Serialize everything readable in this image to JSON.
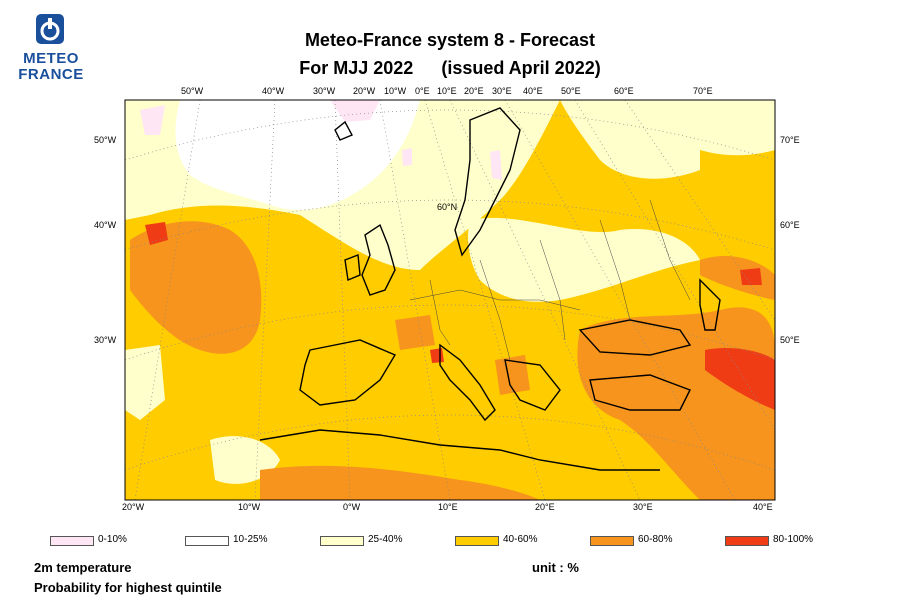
{
  "logo": {
    "line1": "METEO",
    "line2": "FRANCE",
    "icon": "meteo-france-logo-icon"
  },
  "title": {
    "line1": "Meteo-France system 8  -  Forecast",
    "line2_a": "For MJJ 2022",
    "line2_b": "(issued April 2022)"
  },
  "map": {
    "top_labels": [
      "50°W",
      "40°W",
      "30°W",
      "20°W",
      "10°W",
      "0°E",
      "10°E",
      "20°E",
      "30°E",
      "40°E",
      "50°E",
      "60°E",
      "70°E"
    ],
    "bottom_labels": [
      "20°W",
      "10°W",
      "0°W",
      "10°E",
      "20°E",
      "30°E",
      "40°E"
    ],
    "left_labels": [
      "50°W",
      "40°W",
      "30°W"
    ],
    "right_labels": [
      "70°E",
      "60°E",
      "50°E"
    ],
    "inner_label": "60°N",
    "colors": {
      "p0_10": "#ffe6f5",
      "p10_25": "#ffffff",
      "p25_40": "#ffffcc",
      "p40_60": "#ffcc00",
      "p60_80": "#f7941d",
      "p80_100": "#f03c14"
    }
  },
  "legend": [
    {
      "label": "0-10%",
      "color": "#ffe6f5"
    },
    {
      "label": "10-25%",
      "color": "#ffffff"
    },
    {
      "label": "25-40%",
      "color": "#ffffcc"
    },
    {
      "label": "40-60%",
      "color": "#ffcc00"
    },
    {
      "label": "60-80%",
      "color": "#f7941d"
    },
    {
      "label": "80-100%",
      "color": "#f03c14"
    }
  ],
  "footer": {
    "variable": "2m temperature",
    "description": "Probability for highest quintile",
    "unit": "unit : %"
  }
}
